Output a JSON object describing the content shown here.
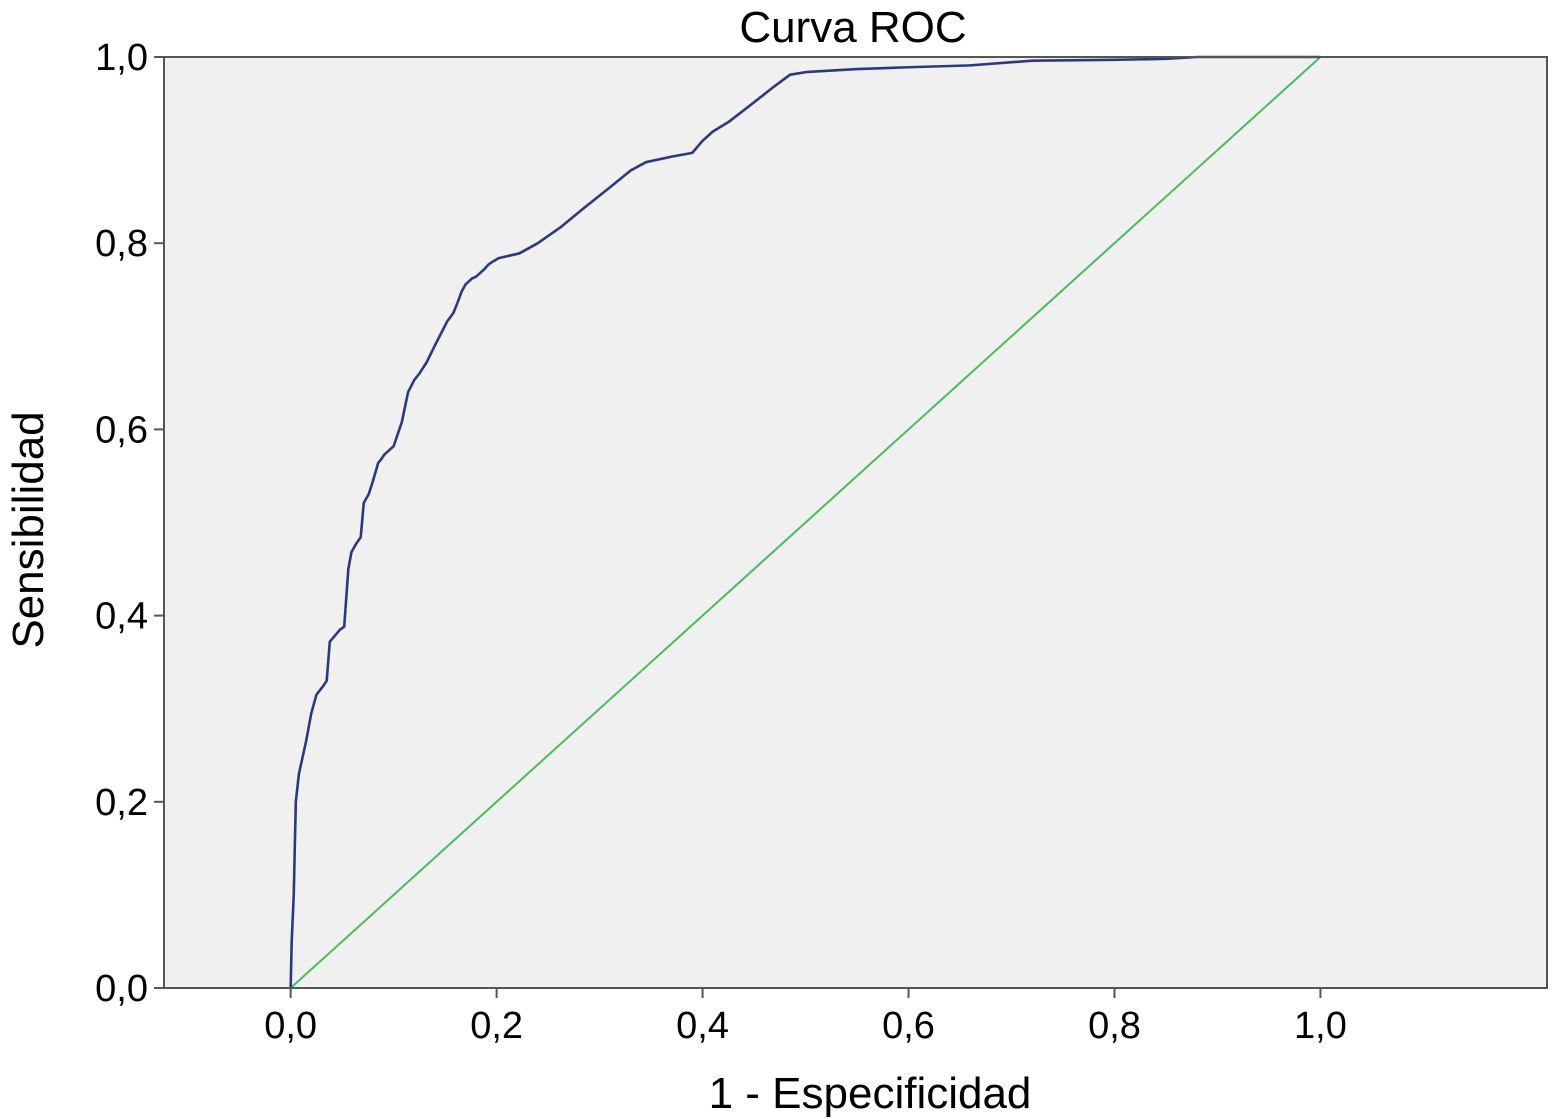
{
  "chart_data": {
    "type": "line",
    "title": "Curva ROC",
    "xlabel": "1 - Especificidad",
    "ylabel": "Sensibilidad",
    "xlim": [
      -0.123,
      1.22
    ],
    "ylim": [
      0.0,
      1.0
    ],
    "x_ticks": [
      "0,0",
      "0,2",
      "0,4",
      "0,6",
      "0,8",
      "1,0"
    ],
    "y_ticks": [
      "0,0",
      "0,2",
      "0,4",
      "0,6",
      "0,8",
      "1,0"
    ],
    "grid": false,
    "legend": "none",
    "colors": {
      "plot_background": "#f0f0f0",
      "roc_curve": "#2b3a7e",
      "reference_line": "#4cbb5b",
      "axis": "#555555"
    },
    "series": [
      {
        "x": [
          0.0,
          0.001,
          0.003,
          0.004,
          0.005,
          0.008,
          0.015,
          0.02,
          0.025,
          0.032,
          0.035,
          0.038,
          0.048,
          0.052,
          0.056,
          0.059,
          0.064,
          0.068,
          0.071,
          0.076,
          0.08,
          0.085,
          0.088,
          0.091,
          0.1,
          0.108,
          0.114,
          0.12,
          0.125,
          0.132,
          0.14,
          0.146,
          0.152,
          0.158,
          0.162,
          0.166,
          0.17,
          0.176,
          0.18,
          0.188,
          0.192,
          0.196,
          0.202,
          0.21,
          0.222,
          0.24,
          0.262,
          0.285,
          0.31,
          0.33,
          0.345,
          0.37,
          0.39,
          0.4,
          0.41,
          0.425,
          0.445,
          0.468,
          0.485,
          0.502,
          0.55,
          0.6,
          0.66,
          0.72,
          0.8,
          0.85,
          0.88,
          0.95,
          1.0
        ],
        "y": [
          0.0,
          0.05,
          0.1,
          0.15,
          0.2,
          0.23,
          0.265,
          0.295,
          0.315,
          0.325,
          0.33,
          0.372,
          0.385,
          0.388,
          0.45,
          0.468,
          0.478,
          0.484,
          0.521,
          0.531,
          0.545,
          0.564,
          0.568,
          0.573,
          0.582,
          0.608,
          0.64,
          0.653,
          0.66,
          0.672,
          0.69,
          0.703,
          0.716,
          0.725,
          0.736,
          0.748,
          0.756,
          0.762,
          0.764,
          0.772,
          0.777,
          0.78,
          0.784,
          0.786,
          0.789,
          0.8,
          0.817,
          0.838,
          0.86,
          0.878,
          0.887,
          0.893,
          0.897,
          0.91,
          0.92,
          0.93,
          0.947,
          0.967,
          0.981,
          0.984,
          0.987,
          0.989,
          0.991,
          0.996,
          0.997,
          0.998,
          1.0,
          1.0,
          1.0
        ]
      },
      {
        "x": [
          0.0,
          1.0
        ],
        "y": [
          0.0,
          1.0
        ]
      }
    ]
  }
}
